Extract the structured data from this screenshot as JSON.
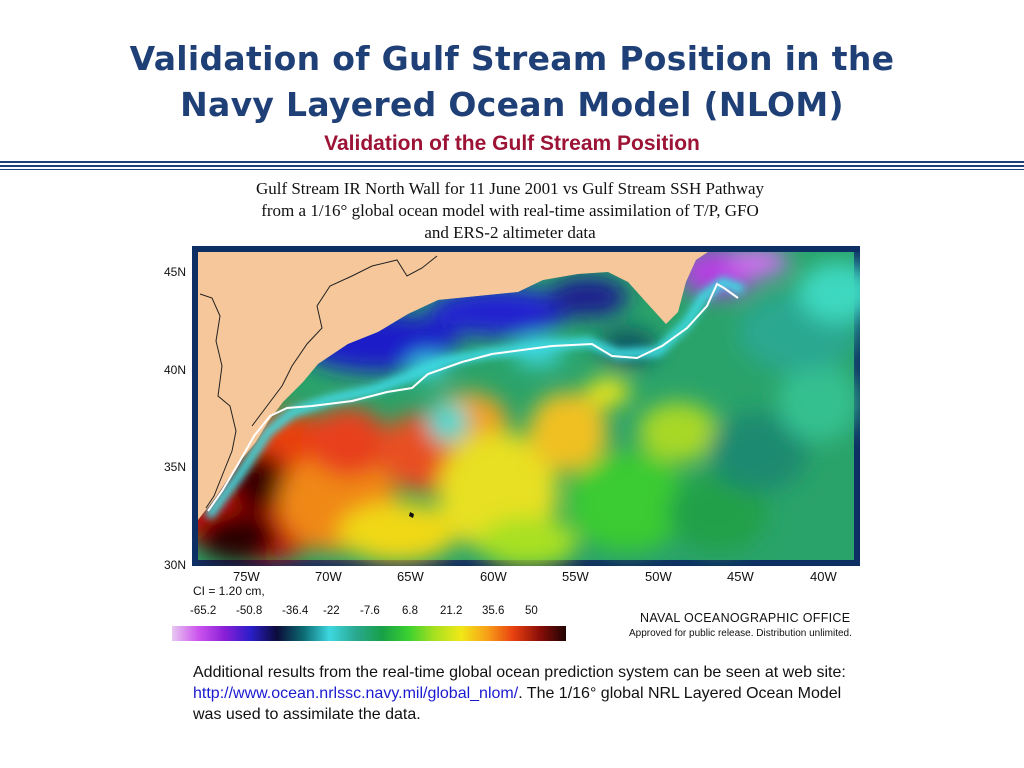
{
  "slide": {
    "title_line1": "Validation of Gulf Stream Position in the",
    "title_line2": "Navy Layered Ocean Model (NLOM)",
    "subtitle": "Validation of the Gulf Stream Position"
  },
  "figure": {
    "title_lines": [
      "Gulf Stream IR North Wall for 11 June 2001 vs Gulf Stream SSH Pathway",
      "from a 1/16° global ocean model with real-time assimilation of T/P, GFO",
      "and ERS-2 altimeter data"
    ],
    "lat_labels": [
      "45N",
      "40N",
      "35N",
      "30N"
    ],
    "lon_labels": [
      "75W",
      "70W",
      "65W",
      "60W",
      "55W",
      "50W",
      "45W",
      "40W"
    ],
    "contour_interval": "CI =  1.20 cm,",
    "colorbar_values": [
      "-65.2",
      "-50.8",
      "-36.4",
      "-22",
      "-7.6",
      "6.8",
      "21.2",
      "35.6",
      "50"
    ],
    "colorbar_colors": [
      "#e8c8f0",
      "#cc55ee",
      "#8a1fd8",
      "#2a1ec8",
      "#0c0c3a",
      "#0c6a72",
      "#3ed8e0",
      "#2aa890",
      "#18a048",
      "#3ad030",
      "#a8e020",
      "#f0e818",
      "#f8a018",
      "#e84010",
      "#8a0e08",
      "#200404"
    ],
    "agency": "NAVAL OCEANOGRAPHIC OFFICE",
    "release": "Approved for public release. Distribution unlimited.",
    "colors": {
      "land": "#f6c79a",
      "frame": "#0d2f63",
      "north_wall": "#ffffff"
    }
  },
  "footer": {
    "text1": "Additional results from the real-time global ocean prediction system can be seen at web site: ",
    "link": "http://www.ocean.nrlssc.navy.mil/global_nlom/",
    "text2": ". The 1/16° global NRL Layered Ocean Model was used to assimilate the data."
  }
}
